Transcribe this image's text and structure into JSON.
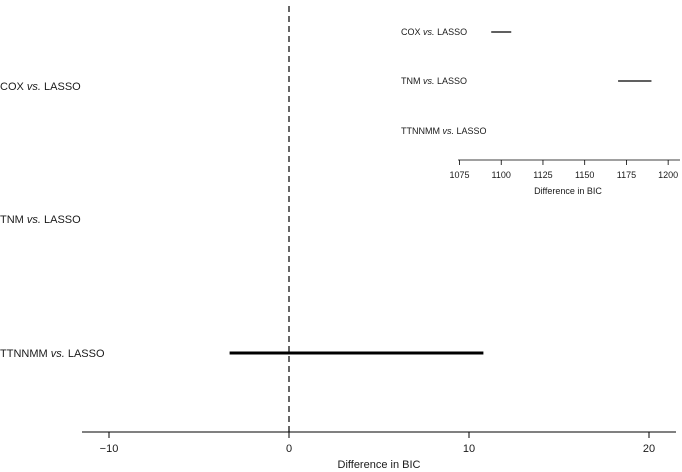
{
  "chart_data": [
    {
      "type": "forest",
      "title": "",
      "xlabel": "Difference in BIC",
      "ylabel": "",
      "xlim": [
        -11.5,
        21.5
      ],
      "xticks": [
        -10,
        0,
        10,
        20
      ],
      "xtick_labels": [
        "−10",
        "0",
        "10",
        "20"
      ],
      "reference_line": 0,
      "rows": [
        {
          "label_main": "COX",
          "label_vs": "vs.",
          "label_ref": "LASSO",
          "lower": null,
          "upper": null
        },
        {
          "label_main": "TNM",
          "label_vs": "vs.",
          "label_ref": "LASSO",
          "lower": null,
          "upper": null
        },
        {
          "label_main": "TTNNMM",
          "label_vs": "vs.",
          "label_ref": "LASSO",
          "lower": -3.3,
          "upper": 10.8
        }
      ]
    },
    {
      "type": "forest",
      "title": "",
      "xlabel": "Difference in BIC",
      "ylabel": "",
      "xlim": [
        1075,
        1205
      ],
      "xticks": [
        1075,
        1100,
        1125,
        1150,
        1175,
        1200
      ],
      "xtick_labels": [
        "1075",
        "1100",
        "1125",
        "1150",
        "1175",
        "1200"
      ],
      "rows": [
        {
          "label_main": "COX",
          "label_vs": "vs.",
          "label_ref": "LASSO",
          "lower": 1094,
          "upper": 1106
        },
        {
          "label_main": "TNM",
          "label_vs": "vs.",
          "label_ref": "LASSO",
          "lower": 1170,
          "upper": 1190
        },
        {
          "label_main": "TTNNMM",
          "label_vs": "vs.",
          "label_ref": "LASSO",
          "lower": null,
          "upper": null
        }
      ]
    }
  ]
}
